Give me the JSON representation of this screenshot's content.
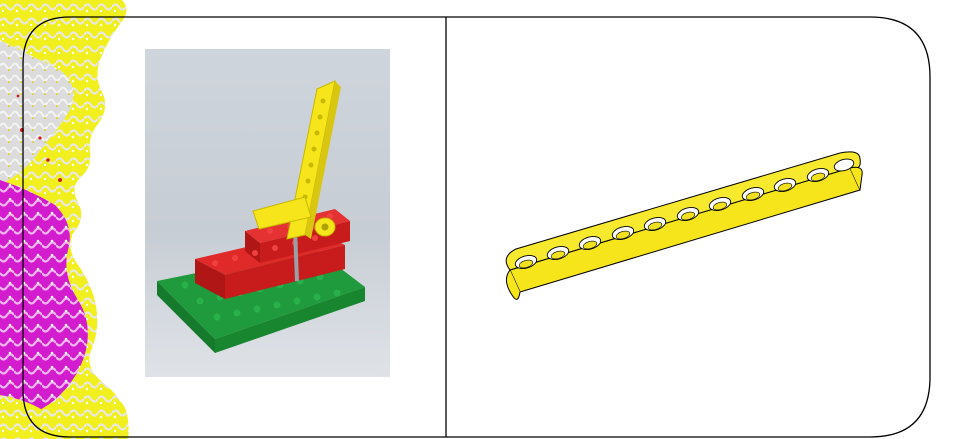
{
  "slide": {
    "colors": {
      "deco_yellow": "#f2ef1e",
      "deco_magenta": "#d41ccf",
      "deco_gray": "#d9d9d9",
      "lego_red": "#d81e1e",
      "lego_green": "#1f9a3c",
      "lego_yellow": "#f5e51a",
      "outline": "#000000"
    },
    "left_panel": {
      "image": "lego-lever-model-photo"
    },
    "right_panel": {
      "image": "yellow-beam-part-drawing"
    }
  }
}
